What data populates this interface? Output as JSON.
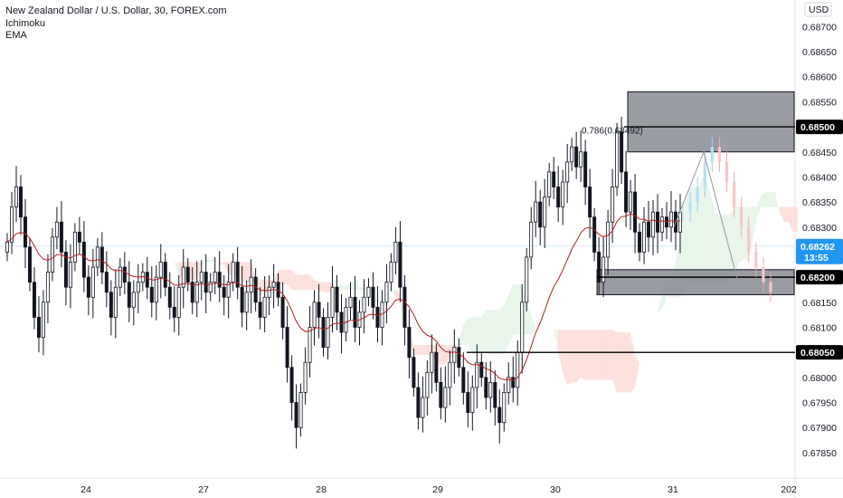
{
  "header": {
    "title": "New Zealand Dollar / U.S. Dollar, 30, FOREX.com",
    "indicators": [
      "Ichimoku",
      "EMA"
    ]
  },
  "currency_button": "USD",
  "colors": {
    "up": "#131722",
    "down": "#131722",
    "ema": "#b71c1c",
    "cloud_green": "#e8f5e9",
    "cloud_red": "#fde0dc",
    "zone_fill": "#787b86",
    "price_tag_bg": "#2196f3",
    "level_tag_bg": "#000000",
    "grid_last": "#cfe8f5"
  },
  "chart_data": {
    "type": "candlestick",
    "title": "New Zealand Dollar / U.S. Dollar, 30, FOREX.com",
    "ylim": [
      0.6781,
      0.68735
    ],
    "y_ticks": [
      "0.68700",
      "0.68650",
      "0.68600",
      "0.68550",
      "0.68450",
      "0.68400",
      "0.68350",
      "0.68300",
      "0.68150",
      "0.68100",
      "0.68000",
      "0.67950",
      "0.67900",
      "0.67850"
    ],
    "x_ticks": [
      "24",
      "27",
      "28",
      "29",
      "30",
      "31",
      "202"
    ],
    "current_price": "0.68262",
    "countdown": "13:55",
    "levels": [
      {
        "label": "0.68500",
        "value": 0.685
      },
      {
        "label": "0.68200",
        "value": 0.682
      },
      {
        "label": "0.68050",
        "value": 0.6805
      }
    ],
    "fib_label": "0.786(0.68492)",
    "zones": [
      {
        "from": 0.6845,
        "to": 0.6857
      },
      {
        "from": 0.68165,
        "to": 0.68215
      }
    ],
    "series_segments": [
      [
        0.6827,
        0.6834,
        0.6838,
        0.6832,
        0.6826,
        0.6819,
        0.6812,
        0.6808,
        0.6815,
        0.6821,
        0.6828,
        0.6831,
        0.6825,
        0.6818,
        0.6823,
        0.6829,
        0.6827,
        0.682,
        0.6816,
        0.6822,
        0.6826,
        0.6821,
        0.6817,
        0.6812,
        0.6818,
        0.6822,
        0.6819,
        0.6814,
        0.6817,
        0.6819
      ],
      [
        0.6821,
        0.6818,
        0.6815,
        0.682,
        0.6823,
        0.6818,
        0.6814,
        0.6812,
        0.6818,
        0.6822,
        0.6819,
        0.6815,
        0.6819,
        0.6821,
        0.6817,
        0.6819,
        0.6821,
        0.6818,
        0.6816,
        0.6819,
        0.6823,
        0.6818,
        0.6813,
        0.6817,
        0.682,
        0.6815,
        0.6812,
        0.6816,
        0.6818,
        0.6819
      ],
      [
        0.6816,
        0.681,
        0.6802,
        0.6795,
        0.679,
        0.6797,
        0.6803,
        0.681,
        0.6815,
        0.6812,
        0.6806,
        0.6812,
        0.6818,
        0.6813,
        0.6809,
        0.6814,
        0.6816,
        0.681,
        0.6813,
        0.6816,
        0.6818,
        0.6814,
        0.681,
        0.6815,
        0.6819,
        0.6823,
        0.6827,
        0.6818,
        0.681,
        0.6804
      ],
      [
        0.6798,
        0.6792,
        0.6796,
        0.6801,
        0.6805,
        0.6799,
        0.6794,
        0.6798,
        0.6803,
        0.6806,
        0.6802,
        0.6797,
        0.6793,
        0.6798,
        0.6803,
        0.68,
        0.6796,
        0.6799,
        0.6794,
        0.6791,
        0.6797,
        0.68,
        0.6798,
        0.6805,
        0.6815,
        0.6824,
        0.6831,
        0.6835,
        0.683,
        0.6836
      ],
      [
        0.6841,
        0.6838,
        0.6834,
        0.6839,
        0.6843,
        0.6846,
        0.6842,
        0.6845,
        0.6838,
        0.6832,
        0.6825,
        0.6819,
        0.6824,
        0.6831,
        0.6838,
        0.6849,
        0.6841,
        0.6833,
        0.6837,
        0.6829,
        0.6825,
        0.6831,
        0.6828,
        0.6833,
        0.6829,
        0.6832,
        0.683,
        0.6833,
        0.6829,
        0.6833
      ]
    ],
    "projection": [
      0.6833,
      0.6835,
      0.6838,
      0.6843,
      0.6846,
      0.6843,
      0.6839,
      0.6834,
      0.683,
      0.6825,
      0.6822,
      0.6819,
      0.6817
    ]
  }
}
